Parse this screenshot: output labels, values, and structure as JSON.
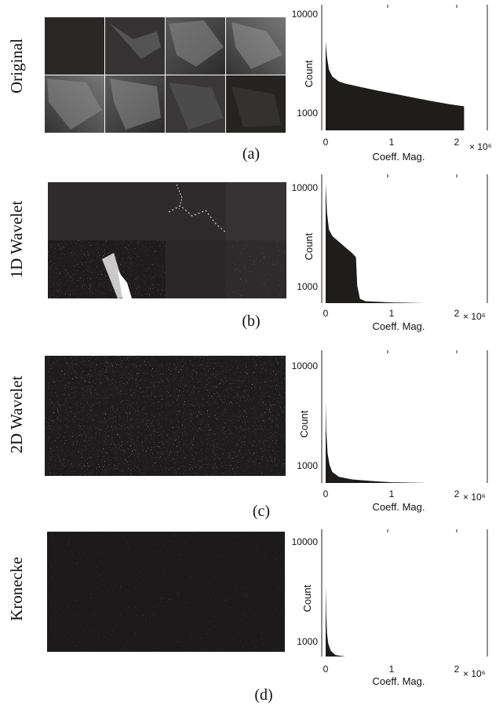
{
  "figure": {
    "panels": [
      {
        "id": "a",
        "row_label": "Original",
        "caption": "(a)",
        "image_style": "original",
        "chart": {
          "type": "area",
          "xlabel": "Coeff. Mag.",
          "ylabel": "Count",
          "x_ticks": [
            "0",
            "1",
            "2"
          ],
          "y_ticks": [
            "10000",
            "1000"
          ],
          "x_scale_label": "× 10⁶",
          "xlim": [
            -0.1,
            4.3
          ],
          "ylim": [
            600,
            13000
          ],
          "yscale": "log"
        }
      },
      {
        "id": "b",
        "row_label": "1D Wavelet",
        "caption": "(b)",
        "image_style": "wavelet1d",
        "chart": {
          "type": "area",
          "xlabel": "Coeff. Mag.",
          "ylabel": "Count",
          "x_ticks": [
            "0",
            "1",
            "2"
          ],
          "y_ticks": [
            "10000",
            "1000"
          ],
          "x_scale_label": "× 10⁶",
          "xlim": [
            -0.1,
            4.3
          ],
          "ylim": [
            600,
            13000
          ],
          "yscale": "log"
        }
      },
      {
        "id": "c",
        "row_label": "2D  Wavelet",
        "caption": "(c)",
        "image_style": "noise",
        "chart": {
          "type": "area",
          "xlabel": "Coeff. Mag.",
          "ylabel": "Count",
          "x_ticks": [
            "0",
            "1",
            "2"
          ],
          "y_ticks": [
            "10000",
            "1000"
          ],
          "x_scale_label": "× 10⁶",
          "xlim": [
            -0.1,
            4.3
          ],
          "ylim": [
            600,
            13000
          ],
          "yscale": "log"
        }
      },
      {
        "id": "d",
        "row_label": "Kronecke",
        "caption": "(d)",
        "image_style": "noise",
        "chart": {
          "type": "area",
          "xlabel": "Coeff. Mag.",
          "ylabel": "Count",
          "x_ticks": [
            "0",
            "1",
            "2"
          ],
          "y_ticks": [
            "10000",
            "1000"
          ],
          "x_scale_label": "× 10⁶",
          "xlim": [
            -0.1,
            4.3
          ],
          "ylim": [
            600,
            13000
          ],
          "yscale": "log"
        }
      }
    ]
  },
  "chart_data": [
    {
      "type": "area",
      "title": "",
      "xlabel": "Coeff. Mag.",
      "ylabel": "Count",
      "yscale": "log",
      "xlim": [
        -0.1,
        4.3
      ],
      "ylim": [
        600,
        13000
      ],
      "x": [
        0,
        0.02,
        0.05,
        0.1,
        0.2,
        0.3,
        0.5,
        0.8,
        1.0,
        1.3,
        1.6,
        1.9,
        2.1
      ],
      "values": [
        5200,
        3600,
        2700,
        2300,
        2050,
        1950,
        1820,
        1650,
        1560,
        1420,
        1300,
        1200,
        1150
      ]
    },
    {
      "type": "area",
      "title": "",
      "xlabel": "Coeff. Mag.",
      "ylabel": "Count",
      "yscale": "log",
      "xlim": [
        -0.1,
        4.3
      ],
      "ylim": [
        600,
        13000
      ],
      "x": [
        0,
        0.02,
        0.05,
        0.1,
        0.2,
        0.3,
        0.4,
        0.46,
        0.48,
        0.52,
        0.6,
        1.0,
        1.5,
        1.95
      ],
      "values": [
        11000,
        5500,
        3700,
        3200,
        2800,
        2450,
        2150,
        1950,
        1000,
        740,
        700,
        680,
        660,
        645
      ]
    },
    {
      "type": "area",
      "title": "",
      "xlabel": "Coeff. Mag.",
      "ylabel": "Count",
      "yscale": "log",
      "xlim": [
        -0.1,
        4.3
      ],
      "ylim": [
        600,
        13000
      ],
      "x": [
        0,
        0.01,
        0.03,
        0.06,
        0.1,
        0.2,
        0.4,
        0.7,
        1.0,
        1.5
      ],
      "values": [
        4300,
        2200,
        1300,
        1000,
        850,
        760,
        715,
        690,
        670,
        660
      ]
    },
    {
      "type": "area",
      "title": "",
      "xlabel": "Coeff. Mag.",
      "ylabel": "Count",
      "yscale": "log",
      "xlim": [
        -0.1,
        4.3
      ],
      "ylim": [
        600,
        13000
      ],
      "x": [
        0,
        0.01,
        0.02,
        0.04,
        0.08,
        0.15,
        0.3,
        0.5,
        0.75
      ],
      "values": [
        3500,
        1800,
        1200,
        930,
        790,
        720,
        690,
        670,
        660
      ]
    }
  ]
}
